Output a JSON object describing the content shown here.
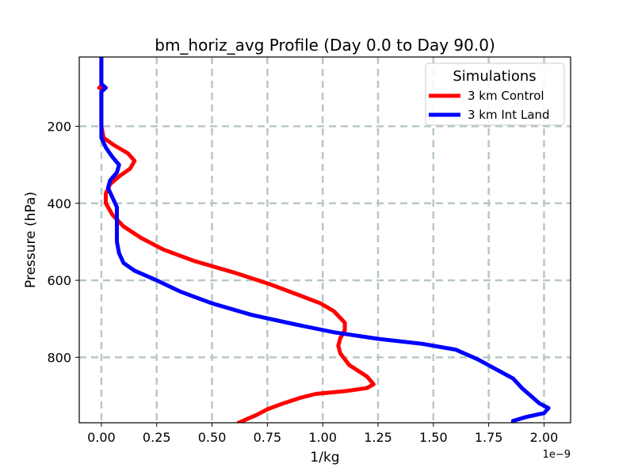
{
  "chart_data": {
    "type": "line",
    "title": "bm_horiz_avg Profile (Day 0.0 to Day 90.0)",
    "xlabel": "1/kg",
    "ylabel": "Pressure (hPa)",
    "x_offset_text": "1e−9",
    "x_scale": 1e-09,
    "xlim": [
      -0.1,
      2.12
    ],
    "ylim": [
      970,
      20
    ],
    "y_inverted": true,
    "xticks": [
      0.0,
      0.25,
      0.5,
      0.75,
      1.0,
      1.25,
      1.5,
      1.75,
      2.0
    ],
    "xtick_labels": [
      "0.00",
      "0.25",
      "0.50",
      "0.75",
      "1.00",
      "1.25",
      "1.50",
      "1.75",
      "2.00"
    ],
    "yticks": [
      200,
      400,
      600,
      800
    ],
    "ytick_labels": [
      "200",
      "400",
      "600",
      "800"
    ],
    "grid": true,
    "legend": {
      "title": "Simulations",
      "position": "top-right"
    },
    "series": [
      {
        "name": "3 km Control",
        "color": "#ff0000",
        "points": [
          [
            0.0,
            20
          ],
          [
            0.0,
            60
          ],
          [
            0.0,
            95
          ],
          [
            -0.01,
            100
          ],
          [
            0.01,
            105
          ],
          [
            0.0,
            110
          ],
          [
            0.0,
            150
          ],
          [
            0.0,
            200
          ],
          [
            0.01,
            230
          ],
          [
            0.06,
            250
          ],
          [
            0.12,
            270
          ],
          [
            0.15,
            290
          ],
          [
            0.13,
            310
          ],
          [
            0.08,
            330
          ],
          [
            0.04,
            350
          ],
          [
            0.02,
            375
          ],
          [
            0.02,
            400
          ],
          [
            0.05,
            430
          ],
          [
            0.1,
            460
          ],
          [
            0.18,
            490
          ],
          [
            0.28,
            520
          ],
          [
            0.42,
            550
          ],
          [
            0.6,
            580
          ],
          [
            0.76,
            610
          ],
          [
            0.9,
            640
          ],
          [
            0.99,
            660
          ],
          [
            1.05,
            680
          ],
          [
            1.1,
            710
          ],
          [
            1.1,
            730
          ],
          [
            1.08,
            750
          ],
          [
            1.07,
            770
          ],
          [
            1.08,
            790
          ],
          [
            1.12,
            820
          ],
          [
            1.2,
            850
          ],
          [
            1.23,
            870
          ],
          [
            1.2,
            880
          ],
          [
            1.1,
            888
          ],
          [
            0.97,
            895
          ],
          [
            0.9,
            905
          ],
          [
            0.82,
            920
          ],
          [
            0.75,
            935
          ],
          [
            0.7,
            950
          ],
          [
            0.66,
            960
          ],
          [
            0.62,
            970
          ]
        ]
      },
      {
        "name": "3 km Int Land",
        "color": "#0000ff",
        "points": [
          [
            0.0,
            20
          ],
          [
            0.0,
            70
          ],
          [
            0.0,
            90
          ],
          [
            0.02,
            100
          ],
          [
            0.0,
            110
          ],
          [
            0.0,
            150
          ],
          [
            0.0,
            200
          ],
          [
            0.0,
            230
          ],
          [
            0.02,
            255
          ],
          [
            0.05,
            280
          ],
          [
            0.08,
            300
          ],
          [
            0.07,
            320
          ],
          [
            0.04,
            340
          ],
          [
            0.03,
            360
          ],
          [
            0.05,
            385
          ],
          [
            0.07,
            410
          ],
          [
            0.07,
            450
          ],
          [
            0.07,
            500
          ],
          [
            0.08,
            530
          ],
          [
            0.1,
            555
          ],
          [
            0.15,
            575
          ],
          [
            0.25,
            600
          ],
          [
            0.36,
            630
          ],
          [
            0.5,
            660
          ],
          [
            0.68,
            690
          ],
          [
            0.88,
            715
          ],
          [
            1.05,
            735
          ],
          [
            1.25,
            752
          ],
          [
            1.45,
            765
          ],
          [
            1.6,
            780
          ],
          [
            1.7,
            805
          ],
          [
            1.78,
            830
          ],
          [
            1.86,
            855
          ],
          [
            1.9,
            880
          ],
          [
            1.95,
            905
          ],
          [
            1.98,
            920
          ],
          [
            2.02,
            932
          ],
          [
            2.0,
            945
          ],
          [
            1.92,
            955
          ],
          [
            1.86,
            965
          ],
          [
            1.86,
            970
          ]
        ]
      }
    ]
  }
}
